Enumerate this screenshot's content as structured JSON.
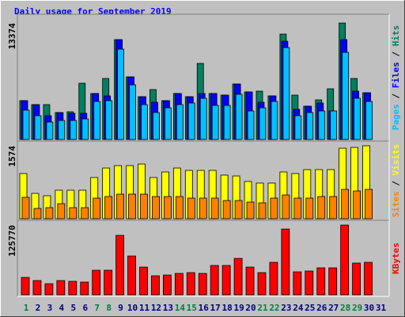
{
  "chart_data": {
    "type": "bar",
    "title": "Daily usage for September 2019",
    "categories": [
      "1",
      "2",
      "3",
      "4",
      "5",
      "6",
      "7",
      "8",
      "9",
      "10",
      "11",
      "12",
      "13",
      "14",
      "15",
      "16",
      "17",
      "18",
      "19",
      "20",
      "21",
      "22",
      "23",
      "24",
      "25",
      "26",
      "27",
      "28",
      "29",
      "30",
      "31"
    ],
    "category_colors": [
      "#008040",
      "#000080",
      "#000080",
      "#000080",
      "#000080",
      "#000080",
      "#008040",
      "#008040",
      "#000080",
      "#000080",
      "#000080",
      "#000080",
      "#000080",
      "#008040",
      "#008040",
      "#000080",
      "#000080",
      "#000080",
      "#000080",
      "#000080",
      "#008040",
      "#008040",
      "#000080",
      "#000080",
      "#000080",
      "#000080",
      "#000080",
      "#008040",
      "#008040",
      "#000080",
      "#000080"
    ],
    "legend_separator": " / ",
    "panels": [
      {
        "ylim": [
          0,
          14200
        ],
        "yticks": [
          13374
        ],
        "series": [
          {
            "name": "Hits",
            "color": "#008060",
            "values": [
              4459,
              4004,
              4004,
              3094,
              3185,
              6461,
              5278,
              7007,
              11466,
              7189,
              4914,
              5733,
              4459,
              5278,
              4914,
              8736,
              5278,
              5096,
              6370,
              5460,
              5551,
              5005,
              12103,
              5096,
              3822,
              4550,
              5824,
              13374,
              7007,
              5369,
              0
            ]
          },
          {
            "name": "Files",
            "color": "#0000ff",
            "values": [
              4459,
              4004,
              2730,
              3094,
              3003,
              3003,
              5278,
              5005,
              11466,
              7189,
              4914,
              4277,
              4459,
              5278,
              4914,
              5278,
              5278,
              5096,
              6370,
              5460,
              4277,
              5005,
              11284,
              3458,
              3822,
              4186,
              3276,
              11466,
              5551,
              5369,
              0
            ]
          },
          {
            "name": "Pages",
            "color": "#00c0ff",
            "values": [
              3367,
              2730,
              2002,
              2184,
              2184,
              2366,
              4368,
              4459,
              10374,
              6279,
              4004,
              3094,
              3640,
              4004,
              4186,
              4732,
              3913,
              3913,
              5187,
              3276,
              3640,
              4368,
              10556,
              2730,
              3094,
              3276,
              3276,
              10010,
              4732,
              4368,
              0
            ]
          }
        ]
      },
      {
        "ylim": [
          0,
          1642
        ],
        "yticks": [
          1574
        ],
        "series": [
          {
            "name": "Visits",
            "color": "#ffff00",
            "values": [
              975,
              547,
              496,
              616,
              616,
              616,
              889,
              1094,
              1146,
              1146,
              1180,
              889,
              1009,
              1094,
              1043,
              1043,
              1043,
              941,
              923,
              804,
              770,
              770,
              1009,
              975,
              1060,
              1060,
              1060,
              1522,
              1539,
              1574,
              0
            ]
          },
          {
            "name": "Sites",
            "color": "#ff8000",
            "values": [
              462,
              222,
              239,
              325,
              239,
              239,
              445,
              479,
              530,
              530,
              530,
              479,
              479,
              479,
              445,
              445,
              445,
              393,
              393,
              359,
              342,
              445,
              513,
              445,
              445,
              479,
              479,
              633,
              599,
              633,
              0
            ]
          }
        ]
      },
      {
        "ylim": [
          0,
          131500
        ],
        "yticks": [
          125770
        ],
        "series": [
          {
            "name": "KBytes",
            "color": "#ff0000",
            "values": [
              31400,
              25700,
              20000,
              25700,
              24300,
              22900,
              44300,
              44300,
              107200,
              70000,
              50000,
              34300,
              35700,
              38600,
              40000,
              38600,
              52900,
              52900,
              65700,
              50000,
              40000,
              58600,
              118600,
              41400,
              42900,
              48600,
              48600,
              125770,
              57200,
              58600,
              0
            ]
          }
        ]
      }
    ]
  }
}
